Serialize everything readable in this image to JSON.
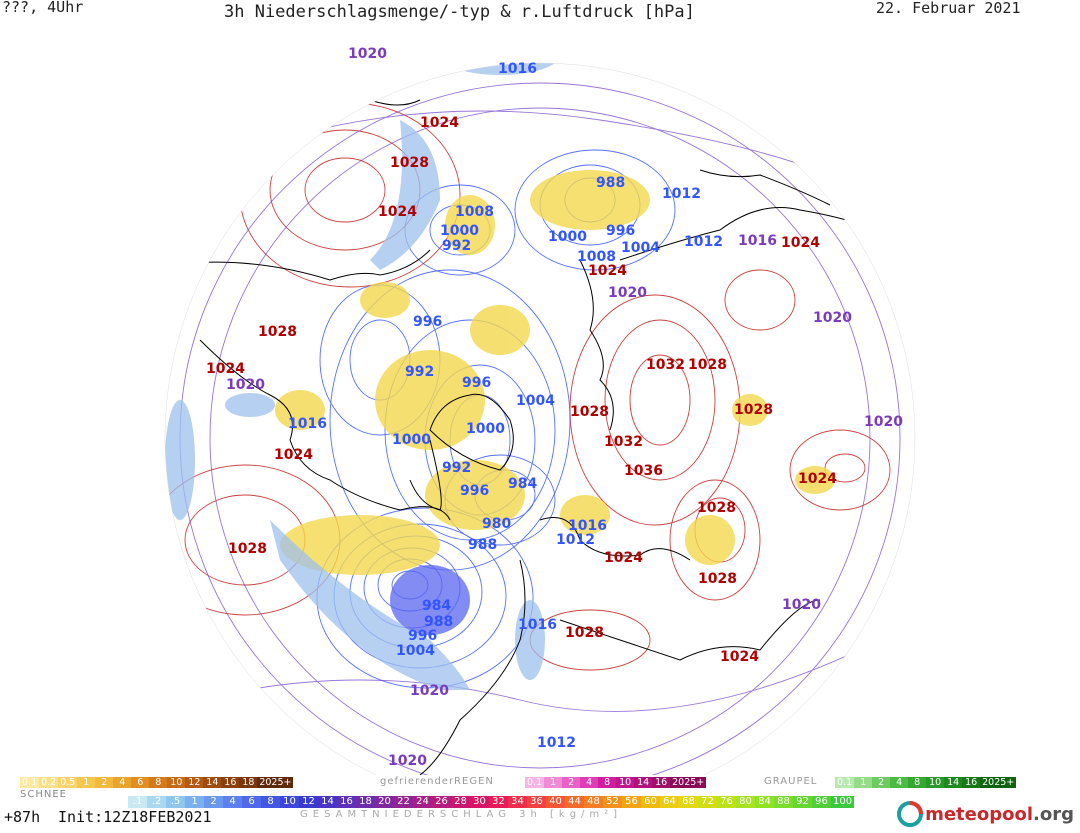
{
  "header": {
    "left": "???, 4Uhr",
    "title": "3h Niederschlagsmenge/-typ & r.Luftdruck [hPa]",
    "date": "22. Februar 2021"
  },
  "colors": {
    "high_isobar": "#b00000",
    "low_isobar": "#3355ff",
    "mid_isobar": "#7a3bbf",
    "coast": "#000000",
    "snow": "#f2d24a",
    "rain_light": "#a8c8f0",
    "rain_dark": "#4a5cf0"
  },
  "isobar_labels": [
    {
      "text": "1020",
      "kind": "mid"
    },
    {
      "text": "1016",
      "kind": "low"
    },
    {
      "text": "1024",
      "kind": "high"
    },
    {
      "text": "1028",
      "kind": "high"
    },
    {
      "text": "1024",
      "kind": "high"
    },
    {
      "text": "1008",
      "kind": "low"
    },
    {
      "text": "1000",
      "kind": "low"
    },
    {
      "text": "992",
      "kind": "low"
    },
    {
      "text": "988",
      "kind": "low"
    },
    {
      "text": "1012",
      "kind": "low"
    },
    {
      "text": "996",
      "kind": "low"
    },
    {
      "text": "1004",
      "kind": "low"
    },
    {
      "text": "1000",
      "kind": "low"
    },
    {
      "text": "1008",
      "kind": "low"
    },
    {
      "text": "1012",
      "kind": "low"
    },
    {
      "text": "1016",
      "kind": "mid"
    },
    {
      "text": "1024",
      "kind": "high"
    },
    {
      "text": "1024",
      "kind": "high"
    },
    {
      "text": "1020",
      "kind": "mid"
    },
    {
      "text": "1028",
      "kind": "high"
    },
    {
      "text": "996",
      "kind": "low"
    },
    {
      "text": "1020",
      "kind": "mid"
    },
    {
      "text": "1024",
      "kind": "high"
    },
    {
      "text": "1020",
      "kind": "mid"
    },
    {
      "text": "992",
      "kind": "low"
    },
    {
      "text": "996",
      "kind": "low"
    },
    {
      "text": "1032",
      "kind": "high"
    },
    {
      "text": "1028",
      "kind": "high"
    },
    {
      "text": "1004",
      "kind": "low"
    },
    {
      "text": "1028",
      "kind": "high"
    },
    {
      "text": "1028",
      "kind": "high"
    },
    {
      "text": "1016",
      "kind": "low"
    },
    {
      "text": "1000",
      "kind": "low"
    },
    {
      "text": "1000",
      "kind": "low"
    },
    {
      "text": "1032",
      "kind": "high"
    },
    {
      "text": "1020",
      "kind": "mid"
    },
    {
      "text": "1024",
      "kind": "high"
    },
    {
      "text": "992",
      "kind": "low"
    },
    {
      "text": "1036",
      "kind": "high"
    },
    {
      "text": "996",
      "kind": "low"
    },
    {
      "text": "984",
      "kind": "low"
    },
    {
      "text": "1024",
      "kind": "high"
    },
    {
      "text": "1028",
      "kind": "high"
    },
    {
      "text": "980",
      "kind": "low"
    },
    {
      "text": "1016",
      "kind": "low"
    },
    {
      "text": "988",
      "kind": "low"
    },
    {
      "text": "1012",
      "kind": "low"
    },
    {
      "text": "1024",
      "kind": "high"
    },
    {
      "text": "1028",
      "kind": "high"
    },
    {
      "text": "1028",
      "kind": "high"
    },
    {
      "text": "984",
      "kind": "low"
    },
    {
      "text": "988",
      "kind": "low"
    },
    {
      "text": "996",
      "kind": "low"
    },
    {
      "text": "1020",
      "kind": "mid"
    },
    {
      "text": "1004",
      "kind": "low"
    },
    {
      "text": "1016",
      "kind": "low"
    },
    {
      "text": "1028",
      "kind": "high"
    },
    {
      "text": "1024",
      "kind": "high"
    },
    {
      "text": "1020",
      "kind": "mid"
    },
    {
      "text": "1012",
      "kind": "low"
    },
    {
      "text": "1020",
      "kind": "mid"
    }
  ],
  "legend": {
    "snow_title": "SCHNEE",
    "snow": {
      "labels": [
        "0.1",
        "0.2",
        "0.5",
        "1",
        "2",
        "4",
        "6",
        "8",
        "10",
        "12",
        "14",
        "16",
        "18",
        "2025+"
      ],
      "colors": [
        "#fde9a0",
        "#fbe08a",
        "#f8d46a",
        "#f5c84c",
        "#f2b93a",
        "#eaa42e",
        "#e08e22",
        "#d47a1a",
        "#c66a16",
        "#b45a12",
        "#a04c10",
        "#8c400e",
        "#7a360c",
        "#5e2a0a"
      ]
    },
    "freezing_title": "gefrierenderREGEN",
    "freezing": {
      "labels": [
        "0.1",
        "1",
        "2",
        "4",
        "8",
        "10",
        "14",
        "16",
        "2025+"
      ],
      "colors": [
        "#f6b3e6",
        "#f08ad6",
        "#e860c8",
        "#e03cb8",
        "#d01ea0",
        "#c0168e",
        "#b0127c",
        "#a00e6a",
        "#8a0a58"
      ]
    },
    "graupel_title": "GRAUPEL",
    "graupel": {
      "labels": [
        "0.1",
        "1",
        "2",
        "4",
        "8",
        "10",
        "14",
        "16",
        "2025+"
      ],
      "colors": [
        "#b8eab0",
        "#94dc88",
        "#6ecb62",
        "#4cbb44",
        "#36a832",
        "#2a9828",
        "#208820",
        "#187818",
        "#106410"
      ]
    },
    "total": {
      "labels": [
        ".1",
        ".2",
        ".5",
        "1",
        "2",
        "4",
        "6",
        "8",
        "10",
        "12",
        "14",
        "16",
        "18",
        "20",
        "22",
        "24",
        "26",
        "28",
        "30",
        "32",
        "34",
        "36",
        "40",
        "44",
        "48",
        "52",
        "56",
        "60",
        "64",
        "68",
        "72",
        "76",
        "80",
        "84",
        "88",
        "92",
        "96",
        "100"
      ],
      "colors": [
        "#c8e8f4",
        "#aad8f0",
        "#8ec6ee",
        "#7ab0ee",
        "#6a98ee",
        "#5c80ee",
        "#5068ea",
        "#4456e4",
        "#3c48dc",
        "#3a3cd0",
        "#4a36c4",
        "#5c30b8",
        "#6e2cac",
        "#8028a0",
        "#922494",
        "#a42088",
        "#b61c7c",
        "#c81870",
        "#da1464",
        "#e81c58",
        "#ee2e4c",
        "#f04240",
        "#f25634",
        "#f46a2c",
        "#f47e24",
        "#f2921c",
        "#f0a614",
        "#eeba10",
        "#eccc10",
        "#e2d812",
        "#d0de14",
        "#bce218",
        "#a6e41e",
        "#90e224",
        "#7ade2a",
        "#64d830",
        "#4ed036",
        "#3cc83c"
      ]
    },
    "total_title": "GESAMTNIEDERSCHLAG 3h [kg/m²]"
  },
  "footer": {
    "forecast": "+87h",
    "init": "Init:12Z18FEB2021",
    "brand": "meteopool",
    "brand_tld": ".org"
  }
}
